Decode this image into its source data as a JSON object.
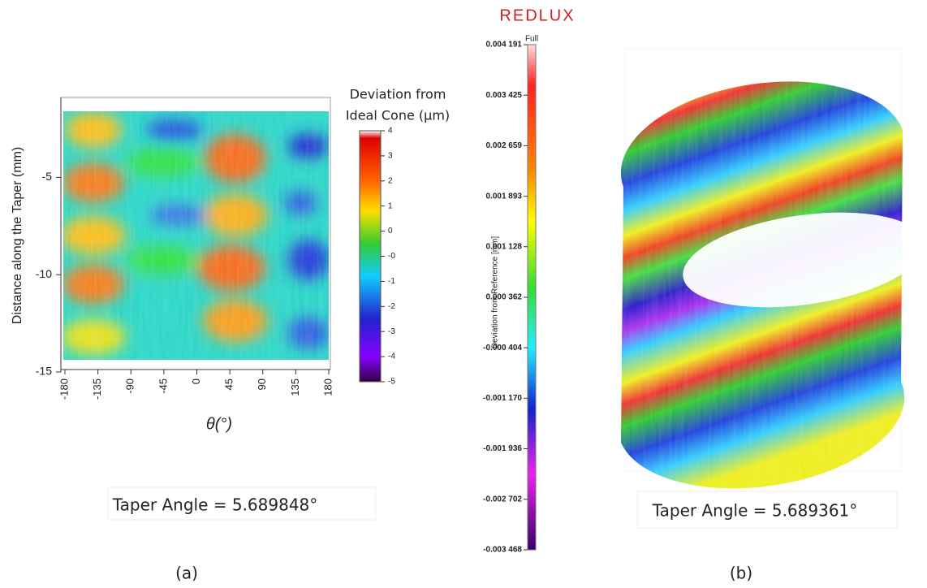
{
  "chart_data": [
    {
      "type": "heatmap",
      "y_label": "Distance along the Taper (mm)",
      "x_label": "θ(°)",
      "xlim": [
        -180,
        180
      ],
      "xticks": [
        -180,
        -135,
        -90,
        -45,
        0,
        45,
        90,
        135,
        180
      ],
      "ylim": [
        -15,
        -1.6
      ],
      "yticks": [
        -5,
        -10,
        -15
      ],
      "colorbar_title": [
        "Deviation from",
        "Ideal Cone (µm)"
      ],
      "colorbar_ticks": [
        4,
        3,
        2,
        1,
        0,
        {
          "value": 0,
          "label": "-0"
        },
        -1,
        -2,
        -3,
        -4,
        -5
      ],
      "annotation": "Taper Angle = 5.689848°",
      "caption": "(a)"
    },
    {
      "type": "surface",
      "brand": "REDLUX",
      "colorbar_title": "Deviation from Reference [mm]",
      "colorbar_top_label": "Full",
      "ylim": [
        -0.003468,
        0.004191
      ],
      "colorbar_ticks": [
        {
          "value": 0.004191,
          "label": "0.004 191"
        },
        {
          "value": 0.003425,
          "label": "0.003 425"
        },
        {
          "value": 0.002659,
          "label": "0.002 659"
        },
        {
          "value": 0.001893,
          "label": "0.001 893"
        },
        {
          "value": 0.001128,
          "label": "0.001 128"
        },
        {
          "value": 0.000362,
          "label": "0.000 362"
        },
        {
          "value": -0.000404,
          "label": "-0.000 404"
        },
        {
          "value": -0.00117,
          "label": "-0.001 170"
        },
        {
          "value": -0.001936,
          "label": "-0.001 936"
        },
        {
          "value": -0.002702,
          "label": "-0.002 702"
        },
        {
          "value": -0.003468,
          "label": "-0.003 468"
        }
      ],
      "annotation": "Taper Angle = 5.689361°",
      "caption": "(b)"
    }
  ]
}
